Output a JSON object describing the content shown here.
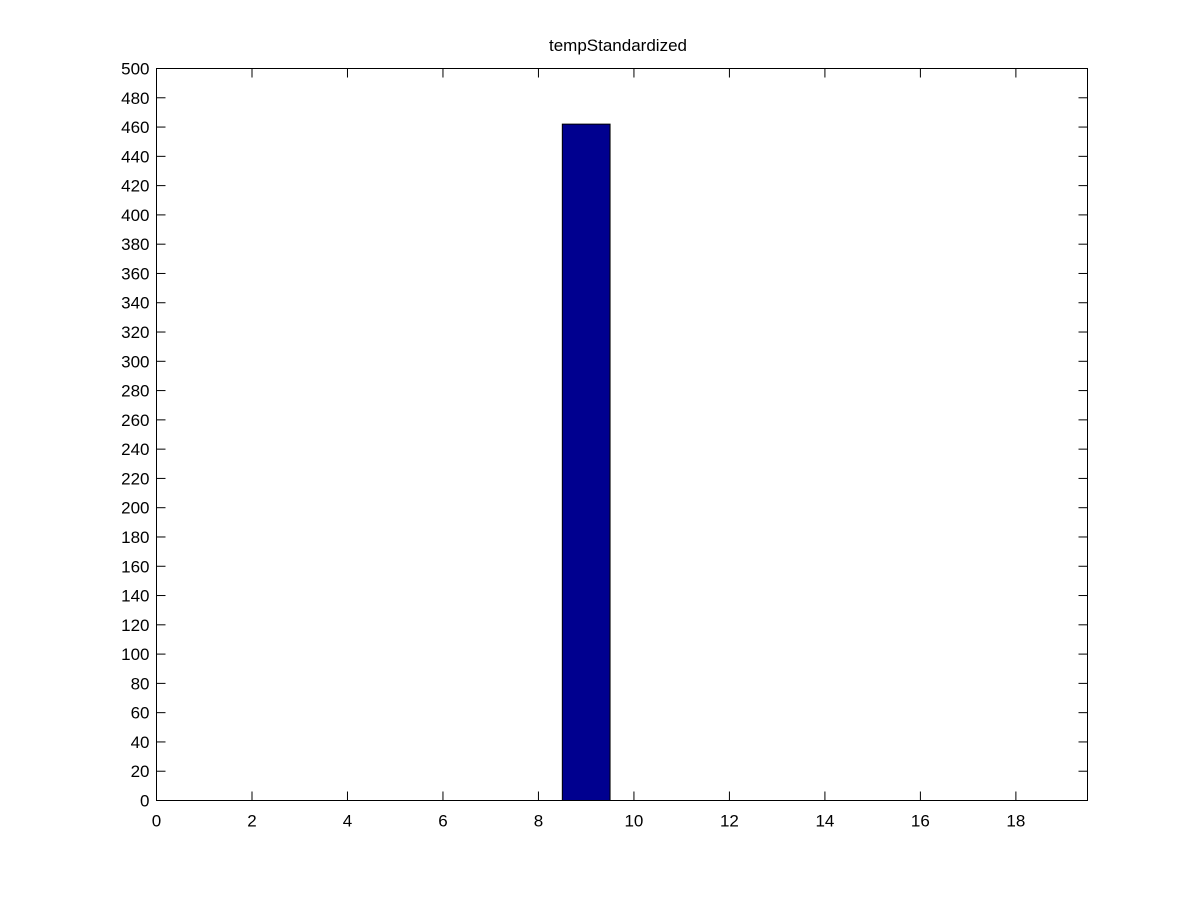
{
  "chart_data": {
    "type": "bar",
    "title": "tempStandardized",
    "xlabel": "",
    "ylabel": "",
    "x": [
      9
    ],
    "values": [
      462
    ],
    "bar_width": 1,
    "xlim": [
      0,
      19.5
    ],
    "ylim": [
      0,
      500
    ],
    "xticks": [
      0,
      2,
      4,
      6,
      8,
      10,
      12,
      14,
      16,
      18
    ],
    "yticks": [
      0,
      20,
      40,
      60,
      80,
      100,
      120,
      140,
      160,
      180,
      200,
      220,
      240,
      260,
      280,
      300,
      320,
      340,
      360,
      380,
      400,
      420,
      440,
      460,
      480,
      500
    ],
    "grid": false,
    "legend": "none",
    "colors": {
      "bar_fill": "#00008f",
      "bar_edge": "#000000",
      "axes": "#000000",
      "background": "#ffffff"
    }
  }
}
